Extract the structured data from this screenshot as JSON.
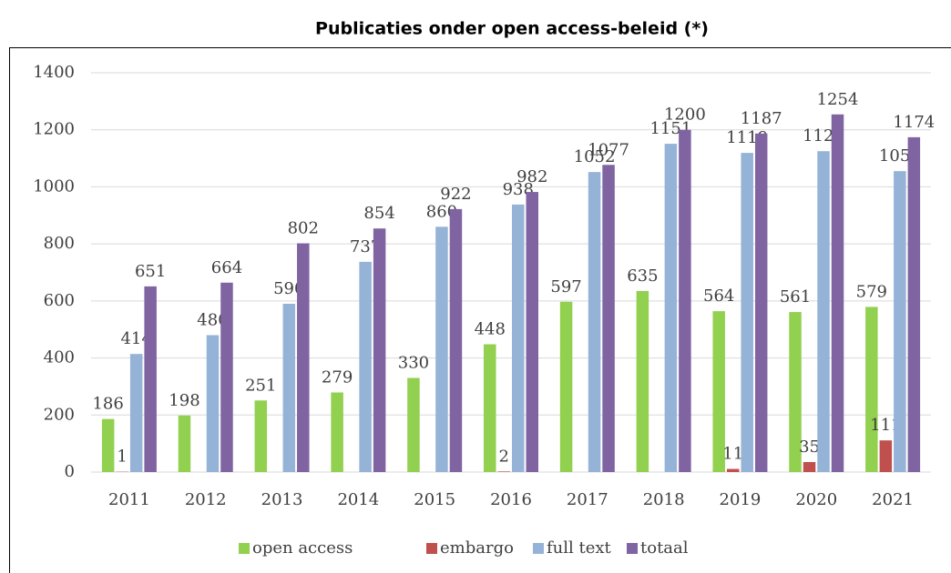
{
  "chart_data": {
    "type": "bar",
    "title": "Publicaties onder open access-beleid (*)",
    "categories": [
      "2011",
      "2012",
      "2013",
      "2014",
      "2015",
      "2016",
      "2017",
      "2018",
      "2019",
      "2020",
      "2021"
    ],
    "series": [
      {
        "name": "open access",
        "color": "#92d050",
        "values": [
          186,
          198,
          251,
          279,
          330,
          448,
          597,
          635,
          564,
          561,
          579
        ]
      },
      {
        "name": "embargo",
        "color": "#c0504d",
        "values": [
          1,
          null,
          null,
          null,
          null,
          2,
          null,
          null,
          11,
          35,
          111
        ]
      },
      {
        "name": "full text",
        "color": "#95b3d7",
        "values": [
          414,
          480,
          590,
          737,
          860,
          938,
          1052,
          1151,
          1119,
          1125,
          1055
        ]
      },
      {
        "name": "totaal",
        "color": "#8064a2",
        "values": [
          651,
          664,
          802,
          854,
          922,
          982,
          1077,
          1200,
          1187,
          1254,
          1174
        ]
      }
    ],
    "ylim": [
      0,
      1400
    ],
    "yticks": [
      0,
      200,
      400,
      600,
      800,
      1000,
      1200,
      1400
    ],
    "grid": true,
    "legend": "bottom"
  }
}
